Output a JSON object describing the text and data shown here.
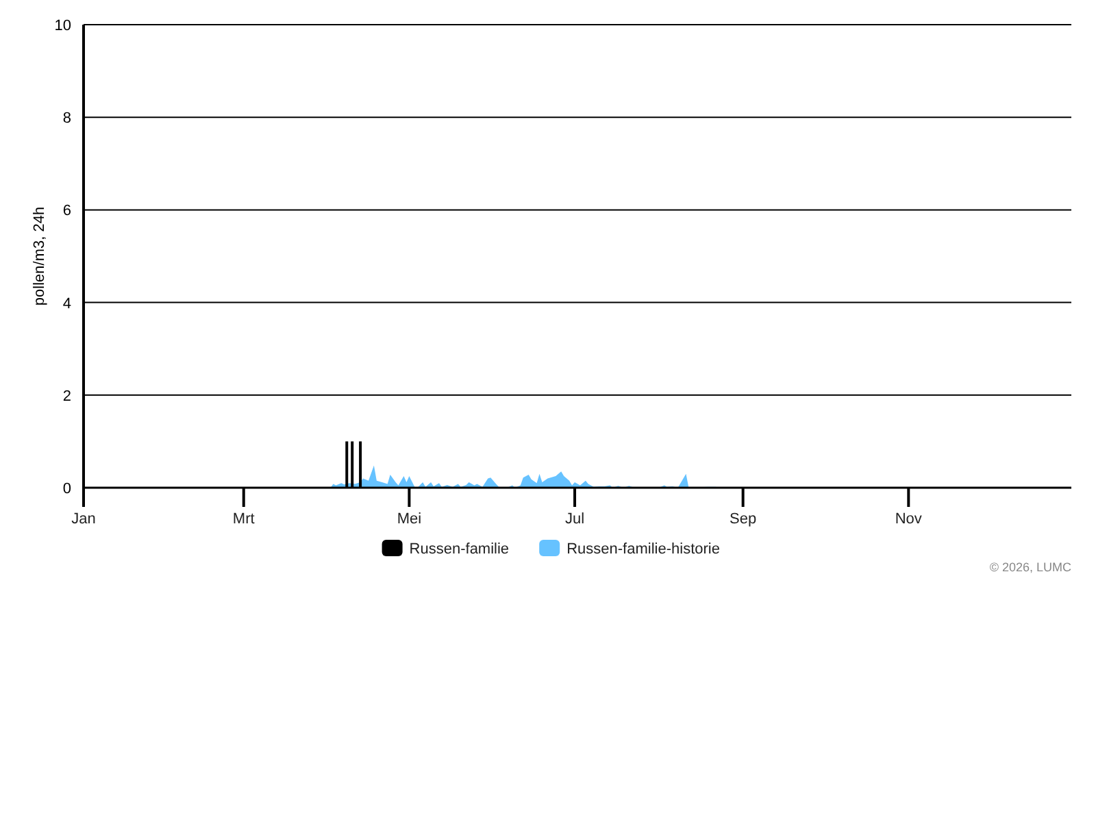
{
  "chart_data": {
    "type": "bar",
    "ylabel": "pollen/m3, 24h",
    "xlim": [
      "--01-01",
      "--12-31"
    ],
    "xticks": [
      {
        "value": "--01-01",
        "label": "Jan"
      },
      {
        "value": "--03-01",
        "label": "Mrt"
      },
      {
        "value": "--05-01",
        "label": "Mei"
      },
      {
        "value": "--07-01",
        "label": "Jul"
      },
      {
        "value": "--09-01",
        "label": "Sep"
      },
      {
        "value": "--11-01",
        "label": "Nov"
      }
    ],
    "ylim": [
      0,
      10
    ],
    "yticks": [
      0,
      2,
      4,
      6,
      8,
      10
    ],
    "grid": "y",
    "legend": "bottom",
    "annotations": [
      "© 2026, LUMC"
    ],
    "series": [
      {
        "name": "Russen-familie",
        "color": "#000000",
        "x": [
          "--04-08",
          "--04-10",
          "--04-13"
        ],
        "values": [
          1,
          1,
          1
        ]
      },
      {
        "name": "Russen-familie-historie",
        "type": "area",
        "color": "#66c2ff",
        "x": [
          "--04-02",
          "--04-03",
          "--04-04",
          "--04-06",
          "--04-07",
          "--04-09",
          "--04-11",
          "--04-13",
          "--04-14",
          "--04-16",
          "--04-18",
          "--04-19",
          "--04-21",
          "--04-23",
          "--04-24",
          "--04-26",
          "--04-27",
          "--04-29",
          "--04-30",
          "--05-01",
          "--05-03",
          "--05-04",
          "--05-06",
          "--05-07",
          "--05-09",
          "--05-10",
          "--05-12",
          "--05-13",
          "--05-15",
          "--05-17",
          "--05-19",
          "--05-20",
          "--05-22",
          "--05-23",
          "--05-25",
          "--05-26",
          "--05-28",
          "--05-30",
          "--05-31",
          "--06-02",
          "--06-03",
          "--06-06",
          "--06-08",
          "--06-09",
          "--06-11",
          "--06-12",
          "--06-14",
          "--06-15",
          "--06-17",
          "--06-18",
          "--06-19",
          "--06-21",
          "--06-24",
          "--06-26",
          "--06-27",
          "--06-29",
          "--06-30",
          "--07-01",
          "--07-03",
          "--07-05",
          "--07-06",
          "--07-08",
          "--07-10",
          "--07-12",
          "--07-14",
          "--07-15",
          "--07-17",
          "--07-19",
          "--07-21",
          "--07-23",
          "--08-01",
          "--08-03",
          "--08-04",
          "--08-06",
          "--08-08",
          "--08-11",
          "--08-12",
          "--08-19",
          "--08-22",
          "--08-23"
        ],
        "values": [
          0,
          0.08,
          0.05,
          0.1,
          0.07,
          0.1,
          0.08,
          0.12,
          0.2,
          0.15,
          0.48,
          0.15,
          0.12,
          0.08,
          0.28,
          0.12,
          0.05,
          0.25,
          0.12,
          0.25,
          0.02,
          0,
          0.12,
          0.02,
          0.12,
          0.03,
          0.1,
          0.02,
          0.06,
          0.02,
          0.08,
          0.02,
          0.06,
          0.12,
          0.05,
          0.08,
          0.02,
          0.2,
          0.22,
          0.08,
          0.02,
          0,
          0.05,
          0,
          0.05,
          0.22,
          0.28,
          0.18,
          0.1,
          0.3,
          0.12,
          0.2,
          0.25,
          0.35,
          0.25,
          0.15,
          0.05,
          0.12,
          0.05,
          0.15,
          0.08,
          0.02,
          0.03,
          0.03,
          0.05,
          0,
          0.04,
          0,
          0.04,
          0,
          0,
          0.05,
          0.02,
          0.03,
          0,
          0.3,
          0,
          0.02,
          0.02,
          0
        ]
      }
    ]
  }
}
